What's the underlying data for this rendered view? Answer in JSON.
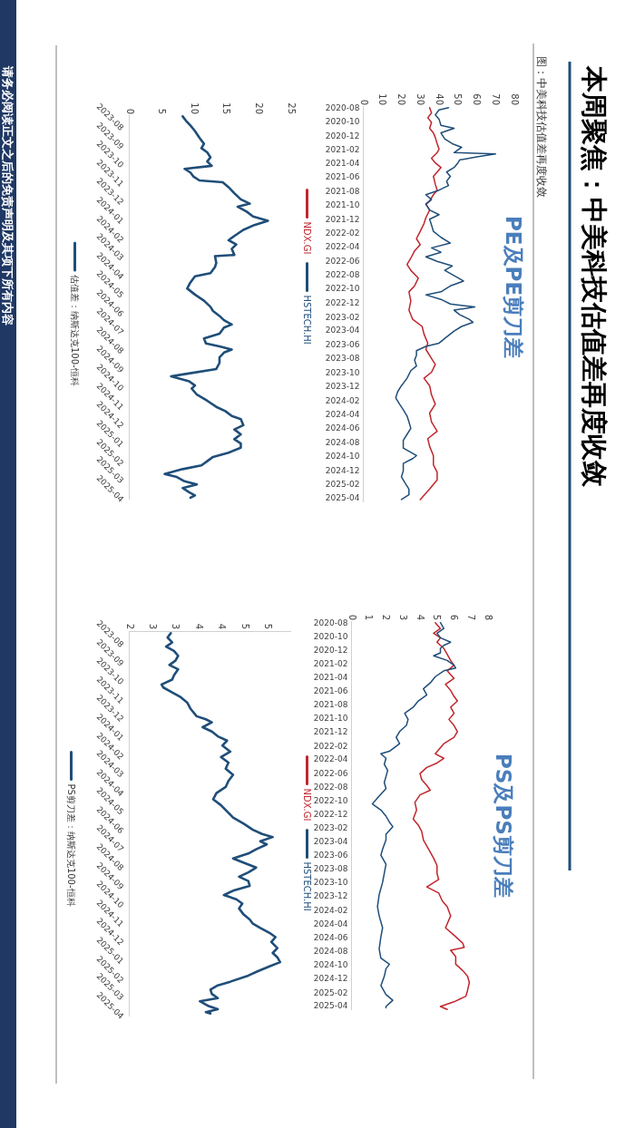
{
  "chart_data": [
    {
      "type": "line",
      "orientation": "horizontal",
      "title": "PE及PE剪刀差",
      "annotations": [
        "本周聚焦：中美科技估值差再度收敛",
        "图：中美科技估值差再度收敛"
      ],
      "ylim": [
        "2025-04-20",
        "2020-07-25"
      ],
      "yticks": [
        "2020-08",
        "2020-10",
        "2020-12",
        "2021-02",
        "2021-04",
        "2021-06",
        "2021-08",
        "2021-10",
        "2021-12",
        "2022-02",
        "2022-04",
        "2022-06",
        "2022-08",
        "2022-10",
        "2022-12",
        "2023-02",
        "2023-04",
        "2023-06",
        "2023-08",
        "2023-10",
        "2023-12",
        "2024-02",
        "2024-04",
        "2024-06",
        "2024-08",
        "2024-10",
        "2024-12",
        "2025-02",
        "2025-04"
      ],
      "xlim": [
        0,
        80
      ],
      "xticks": [
        0,
        10,
        20,
        30,
        40,
        50,
        60,
        70,
        80
      ],
      "legend": "left",
      "series": [
        {
          "name": "NDX.GI",
          "color": "#c0262d",
          "x": [
            "2020-08-01",
            "2020-08-24",
            "2020-09-14",
            "2020-10-04",
            "2020-10-30",
            "2020-11-19",
            "2020-12-09",
            "2021-01-05",
            "2021-01-29",
            "2021-02-13",
            "2021-03-10",
            "2021-03-30",
            "2021-04-19",
            "2021-05-09",
            "2021-05-28",
            "2021-07-01",
            "2021-07-27",
            "2021-08-16",
            "2021-09-12",
            "2021-09-26",
            "2021-10-22",
            "2021-11-24",
            "2021-12-20",
            "2022-01-23",
            "2022-02-24",
            "2022-03-22",
            "2022-04-18",
            "2022-05-20",
            "2022-06-16",
            "2022-07-12",
            "2022-08-15",
            "2022-09-18",
            "2022-10-14",
            "2022-11-23",
            "2023-01-02",
            "2023-02-11",
            "2023-03-14",
            "2023-04-16",
            "2023-05-26",
            "2023-06-22",
            "2023-08-01",
            "2023-08-27",
            "2023-09-30",
            "2023-10-26",
            "2023-11-28",
            "2024-01-07",
            "2024-02-16",
            "2024-03-26",
            "2024-05-04",
            "2024-06-14",
            "2024-07-16",
            "2024-08-19",
            "2024-09-28",
            "2024-11-07",
            "2024-12-10",
            "2025-01-12",
            "2025-02-21",
            "2025-04-08"
          ],
          "values": [
            35,
            36,
            34,
            36,
            35,
            37,
            38,
            39,
            40,
            39,
            36,
            38,
            41,
            39,
            37,
            38,
            39,
            37,
            35,
            33,
            35,
            33,
            32,
            30,
            28,
            30,
            27,
            25,
            23,
            25,
            29,
            27,
            24,
            25,
            24,
            26,
            31,
            32,
            34,
            33,
            36,
            38,
            36,
            32,
            35,
            36,
            38,
            35,
            36,
            39,
            34,
            35,
            37,
            37,
            39,
            39,
            35,
            30
          ]
        },
        {
          "name": "HSTECH.HI",
          "color": "#1f4e79",
          "x": [
            "2020-08-01",
            "2020-08-11",
            "2020-09-01",
            "2020-09-20",
            "2020-10-17",
            "2020-10-30",
            "2020-11-19",
            "2020-12-15",
            "2021-01-05",
            "2021-01-21",
            "2021-02-13",
            "2021-02-19",
            "2021-03-04",
            "2021-03-17",
            "2021-03-30",
            "2021-04-19",
            "2021-05-09",
            "2021-05-28",
            "2021-06-18",
            "2021-07-07",
            "2021-07-27",
            "2021-08-16",
            "2021-09-06",
            "2021-09-26",
            "2021-10-22",
            "2021-11-11",
            "2021-12-01",
            "2021-12-27",
            "2022-01-23",
            "2022-02-18",
            "2022-03-15",
            "2022-04-05",
            "2022-04-24",
            "2022-05-14",
            "2022-06-03",
            "2022-06-23",
            "2022-07-12",
            "2022-08-09",
            "2022-08-28",
            "2022-09-18",
            "2022-10-14",
            "2022-10-27",
            "2022-11-16",
            "2022-12-06",
            "2022-12-19",
            "2023-01-02",
            "2023-01-22",
            "2023-02-11",
            "2023-02-24",
            "2023-03-14",
            "2023-04-03",
            "2023-04-29",
            "2023-05-26",
            "2023-06-09",
            "2023-06-28",
            "2023-07-18",
            "2023-08-08",
            "2023-09-03",
            "2023-09-23",
            "2023-10-26",
            "2023-11-28",
            "2023-12-24",
            "2024-01-20",
            "2024-02-16",
            "2024-03-12",
            "2024-04-08",
            "2024-05-04",
            "2024-06-01",
            "2024-06-27",
            "2024-07-23",
            "2024-08-26",
            "2024-09-28",
            "2024-10-11",
            "2024-11-01",
            "2024-12-03",
            "2024-12-30",
            "2025-01-26",
            "2025-02-21",
            "2025-03-18",
            "2025-04-08"
          ],
          "values": [
            45,
            40,
            38,
            40,
            41,
            48,
            41,
            43,
            47,
            52,
            48,
            70,
            60,
            51,
            50,
            48,
            44,
            46,
            44,
            45,
            40,
            33,
            36,
            33,
            35,
            40,
            35,
            36,
            37,
            41,
            46,
            36,
            41,
            33,
            39,
            47,
            43,
            49,
            53,
            46,
            41,
            33,
            41,
            46,
            59,
            48,
            51,
            56,
            58,
            52,
            48,
            44,
            40,
            33,
            28,
            28,
            27,
            28,
            25,
            23,
            20,
            18,
            17,
            19,
            21,
            23,
            24,
            25,
            23,
            21,
            21,
            28,
            26,
            21,
            21,
            20,
            22,
            24,
            24,
            20
          ]
        }
      ]
    },
    {
      "type": "line",
      "orientation": "horizontal",
      "annotations": [
        "请务必阅读正文之后的免责声明及其项下所有内容"
      ],
      "ylim": [
        "2025-04-20",
        "2023-07-30"
      ],
      "yticks": [
        "2023-08",
        "2023-09",
        "2023-10",
        "2023-11",
        "2023-12",
        "2024-01",
        "2024-02",
        "2024-03",
        "2024-04",
        "2024-05",
        "2024-06",
        "2024-07",
        "2024-08",
        "2024-09",
        "2024-10",
        "2024-11",
        "2024-12",
        "2025-01",
        "2025-02",
        "2025-03",
        "2025-04"
      ],
      "xlim": [
        0,
        25
      ],
      "xticks": [
        0,
        5,
        10,
        15,
        20,
        25
      ],
      "legend": "left",
      "series": [
        {
          "name": "估值差：纳斯达克100-恒科",
          "color": "#1f4e79",
          "x": [
            "2023-08-01",
            "2023-08-08",
            "2023-08-16",
            "2023-08-25",
            "2023-09-05",
            "2023-09-15",
            "2023-09-22",
            "2023-09-29",
            "2023-10-07",
            "2023-10-14",
            "2023-10-21",
            "2023-10-26",
            "2023-11-01",
            "2023-11-08",
            "2023-11-14",
            "2023-11-17",
            "2023-11-25",
            "2023-12-05",
            "2023-12-15",
            "2023-12-22",
            "2023-12-27",
            "2024-01-04",
            "2024-01-12",
            "2024-01-19",
            "2024-01-26",
            "2024-02-03",
            "2024-02-13",
            "2024-02-20",
            "2024-02-27",
            "2024-03-05",
            "2024-03-15",
            "2024-03-17",
            "2024-03-28",
            "2024-04-04",
            "2024-04-14",
            "2024-04-19",
            "2024-04-29",
            "2024-05-09",
            "2024-05-19",
            "2024-05-29",
            "2024-06-08",
            "2024-06-15",
            "2024-06-23",
            "2024-06-30",
            "2024-07-07",
            "2024-07-12",
            "2024-07-22",
            "2024-07-30",
            "2024-08-07",
            "2024-08-12",
            "2024-08-17",
            "2024-08-22",
            "2024-08-30",
            "2024-09-08",
            "2024-09-18",
            "2024-09-26",
            "2024-09-30",
            "2024-10-08",
            "2024-10-15",
            "2024-10-20",
            "2024-10-30",
            "2024-11-09",
            "2024-11-19",
            "2024-11-26",
            "2024-12-04",
            "2024-12-09",
            "2024-12-19",
            "2024-12-26",
            "2025-01-03",
            "2025-01-11",
            "2025-01-18",
            "2025-01-25",
            "2025-02-02",
            "2025-02-09",
            "2025-02-16",
            "2025-02-23",
            "2025-03-01",
            "2025-03-09",
            "2025-03-14",
            "2025-03-21",
            "2025-03-26",
            "2025-04-01",
            "2025-04-08",
            "2025-04-13",
            "2025-04-17"
          ],
          "values": [
            8.2,
            8.7,
            9.4,
            10.1,
            10.8,
            11.5,
            11.1,
            12.0,
            12.5,
            12.0,
            12.7,
            8.5,
            9.4,
            9.9,
            10.8,
            14.4,
            15.3,
            16.2,
            17.2,
            18.6,
            16.7,
            18.1,
            19.1,
            21.4,
            19.3,
            17.6,
            16.2,
            15.3,
            16.5,
            15.8,
            16.2,
            13.2,
            13.4,
            13.2,
            12.5,
            10.1,
            9.4,
            8.9,
            10.1,
            11.5,
            12.5,
            12.9,
            13.9,
            14.6,
            15.8,
            14.6,
            13.9,
            11.5,
            11.8,
            13.9,
            15.8,
            14.6,
            13.9,
            13.9,
            13.4,
            8.7,
            6.4,
            9.2,
            10.1,
            9.6,
            10.4,
            12.0,
            13.4,
            14.8,
            15.8,
            17.2,
            17.6,
            16.2,
            17.2,
            16.2,
            17.2,
            17.2,
            15.3,
            12.9,
            12.0,
            11.1,
            8.2,
            5.4,
            7.3,
            8.5,
            10.4,
            8.2,
            9.2,
            10.1,
            9.4
          ]
        }
      ]
    },
    {
      "type": "line",
      "orientation": "horizontal",
      "title": "PS及PS剪刀差",
      "ylim": [
        "2025-04-20",
        "2020-07-25"
      ],
      "yticks": [
        "2020-08",
        "2020-10",
        "2020-12",
        "2021-02",
        "2021-04",
        "2021-06",
        "2021-08",
        "2021-10",
        "2021-12",
        "2022-02",
        "2022-04",
        "2022-06",
        "2022-08",
        "2022-10",
        "2022-12",
        "2023-02",
        "2023-04",
        "2023-06",
        "2023-08",
        "2023-10",
        "2023-12",
        "2024-02",
        "2024-04",
        "2024-06",
        "2024-08",
        "2024-10",
        "2024-12",
        "2025-02",
        "2025-04"
      ],
      "xlim": [
        0,
        8
      ],
      "xticks": [
        0,
        1,
        2,
        3,
        4,
        5,
        6,
        7,
        8
      ],
      "legend": "left",
      "series": [
        {
          "name": "NDX.GI",
          "color": "#c0262d",
          "x": [
            "2020-08-01",
            "2020-08-27",
            "2020-09-17",
            "2020-10-07",
            "2020-10-27",
            "2020-11-23",
            "2020-12-20",
            "2021-01-16",
            "2021-02-06",
            "2021-03-03",
            "2021-04-06",
            "2021-05-02",
            "2021-05-29",
            "2021-06-25",
            "2021-07-15",
            "2021-08-12",
            "2021-09-08",
            "2021-10-05",
            "2021-11-01",
            "2021-11-28",
            "2021-12-24",
            "2022-01-21",
            "2022-02-17",
            "2022-03-07",
            "2022-03-27",
            "2022-04-17",
            "2022-05-07",
            "2022-06-03",
            "2022-06-30",
            "2022-07-26",
            "2022-08-16",
            "2022-09-06",
            "2022-10-09",
            "2022-11-12",
            "2022-12-22",
            "2023-01-18",
            "2023-02-15",
            "2023-03-25",
            "2023-05-05",
            "2023-06-14",
            "2023-07-17",
            "2023-08-21",
            "2023-09-17",
            "2023-10-20",
            "2023-11-16",
            "2023-12-20",
            "2024-01-16",
            "2024-02-26",
            "2024-04-19",
            "2024-05-22",
            "2024-06-25",
            "2024-07-15",
            "2024-07-28",
            "2024-08-25",
            "2024-09-28",
            "2024-10-25",
            "2024-11-21",
            "2024-12-18",
            "2025-01-21",
            "2025-02-17",
            "2025-03-14",
            "2025-04-04",
            "2025-04-17"
          ],
          "values": [
            4.9,
            5.2,
            4.8,
            5.2,
            5.0,
            5.4,
            5.6,
            5.8,
            6.0,
            5.6,
            6.0,
            5.5,
            5.8,
            6.0,
            6.2,
            5.8,
            6.0,
            5.7,
            6.0,
            6.2,
            6.0,
            5.4,
            5.1,
            4.9,
            5.4,
            5.0,
            4.4,
            4.0,
            4.1,
            4.4,
            4.6,
            4.0,
            3.7,
            3.8,
            3.6,
            3.9,
            4.1,
            4.2,
            4.5,
            4.8,
            5.0,
            5.0,
            5.1,
            4.4,
            5.1,
            5.3,
            5.6,
            5.8,
            5.5,
            6.0,
            6.5,
            6.6,
            5.8,
            6.1,
            6.1,
            6.5,
            6.8,
            6.9,
            6.8,
            6.7,
            6.0,
            5.2,
            5.6
          ]
        },
        {
          "name": "HSTECH.HI",
          "color": "#1f4e79",
          "x": [
            "2020-08-01",
            "2020-08-27",
            "2020-09-17",
            "2020-10-07",
            "2020-10-27",
            "2020-11-10",
            "2020-11-23",
            "2020-12-13",
            "2020-12-26",
            "2021-01-16",
            "2021-02-06",
            "2021-02-19",
            "2021-03-03",
            "2021-03-29",
            "2021-04-26",
            "2021-05-22",
            "2021-06-18",
            "2021-07-15",
            "2021-08-12",
            "2021-09-08",
            "2021-10-05",
            "2021-11-01",
            "2021-11-28",
            "2021-12-24",
            "2022-01-21",
            "2022-02-24",
            "2022-03-07",
            "2022-03-27",
            "2022-04-23",
            "2022-05-20",
            "2022-06-16",
            "2022-07-13",
            "2022-08-09",
            "2022-09-19",
            "2022-10-16",
            "2022-11-12",
            "2022-12-09",
            "2023-01-05",
            "2023-01-25",
            "2023-02-28",
            "2023-03-25",
            "2023-05-05",
            "2023-06-01",
            "2023-07-11",
            "2023-08-21",
            "2023-09-30",
            "2023-11-23",
            "2024-01-16",
            "2024-02-26",
            "2024-04-19",
            "2024-05-29",
            "2024-07-22",
            "2024-09-01",
            "2024-09-28",
            "2024-10-18",
            "2024-11-21",
            "2025-01-01",
            "2025-02-10",
            "2025-03-07",
            "2025-04-04",
            "2025-04-10"
          ],
          "values": [
            5.2,
            5.4,
            5.0,
            5.2,
            5.8,
            5.4,
            5.2,
            5.2,
            4.8,
            5.6,
            6.0,
            6.1,
            5.4,
            4.9,
            4.6,
            4.2,
            4.4,
            3.9,
            3.6,
            3.1,
            3.3,
            3.2,
            2.8,
            2.6,
            2.8,
            2.2,
            1.7,
            2.0,
            1.9,
            2.1,
            2.0,
            1.9,
            2.0,
            1.5,
            1.2,
            1.7,
            2.0,
            2.2,
            2.4,
            2.0,
            2.0,
            1.8,
            1.7,
            2.0,
            1.9,
            1.8,
            1.6,
            1.5,
            1.6,
            1.8,
            1.7,
            1.6,
            1.7,
            2.2,
            2.0,
            1.9,
            1.7,
            2.0,
            2.4,
            2.0,
            2.0
          ]
        }
      ]
    },
    {
      "type": "line",
      "orientation": "horizontal",
      "ylim": [
        "2025-04-20",
        "2023-07-30"
      ],
      "yticks": [
        "2023-08",
        "2023-09",
        "2023-10",
        "2023-11",
        "2023-12",
        "2024-01",
        "2024-02",
        "2024-03",
        "2024-04",
        "2024-05",
        "2024-06",
        "2024-07",
        "2024-08",
        "2024-09",
        "2024-10",
        "2024-11",
        "2024-12",
        "2025-01",
        "2025-02",
        "2025-03",
        "2025-04"
      ],
      "xlim": [
        2,
        5.5
      ],
      "xticks": [
        2,
        {
          "value": 2.5,
          "label": "3"
        },
        3,
        {
          "value": 3.5,
          "label": "4"
        },
        4,
        {
          "value": 4.5,
          "label": "5"
        },
        5
      ],
      "legend": "left",
      "series": [
        {
          "name": "PS剪刀差：纳斯达克100-恒科",
          "color": "#1f4e79",
          "x": [
            "2023-08-01",
            "2023-08-08",
            "2023-08-16",
            "2023-08-23",
            "2023-08-30",
            "2023-09-07",
            "2023-09-15",
            "2023-09-22",
            "2023-09-29",
            "2023-10-09",
            "2023-10-16",
            "2023-10-24",
            "2023-10-29",
            "2023-11-06",
            "2023-11-13",
            "2023-11-23",
            "2023-12-03",
            "2023-12-15",
            "2023-12-20",
            "2023-12-25",
            "2024-01-02",
            "2024-01-09",
            "2024-01-17",
            "2024-01-24",
            "2024-02-01",
            "2024-02-11",
            "2024-02-20",
            "2024-02-29",
            "2024-03-10",
            "2024-03-20",
            "2024-03-30",
            "2024-04-09",
            "2024-04-19",
            "2024-04-29",
            "2024-05-09",
            "2024-05-19",
            "2024-05-29",
            "2024-06-08",
            "2024-06-18",
            "2024-06-25",
            "2024-06-30",
            "2024-07-07",
            "2024-07-12",
            "2024-07-20",
            "2024-07-27",
            "2024-08-04",
            "2024-08-12",
            "2024-08-19",
            "2024-08-27",
            "2024-09-03",
            "2024-09-10",
            "2024-09-18",
            "2024-09-26",
            "2024-10-03",
            "2024-10-10",
            "2024-10-17",
            "2024-10-25",
            "2024-11-04",
            "2024-11-12",
            "2024-11-19",
            "2024-11-26",
            "2024-12-04",
            "2024-12-11",
            "2024-12-19",
            "2024-12-29",
            "2025-01-06",
            "2025-01-13",
            "2025-01-21",
            "2025-01-28",
            "2025-02-05",
            "2025-02-12",
            "2025-02-22",
            "2025-02-28",
            "2025-03-07",
            "2025-03-14",
            "2025-03-21",
            "2025-03-26",
            "2025-04-03",
            "2025-04-08",
            "2025-04-13",
            "2025-04-15"
          ],
          "values": [
            2.89,
            2.82,
            2.92,
            2.79,
            2.96,
            3.05,
            2.99,
            2.86,
            3.05,
            2.96,
            2.92,
            2.69,
            2.73,
            2.92,
            3.09,
            3.25,
            3.32,
            3.45,
            3.65,
            3.78,
            3.58,
            3.78,
            3.91,
            4.11,
            4.01,
            4.18,
            3.98,
            4.14,
            4.08,
            4.24,
            4.14,
            4.08,
            3.88,
            3.81,
            3.98,
            4.11,
            4.24,
            4.47,
            4.67,
            4.87,
            5.1,
            4.83,
            4.97,
            4.74,
            4.57,
            4.24,
            4.5,
            4.74,
            4.57,
            4.37,
            4.57,
            4.6,
            4.24,
            4.04,
            4.31,
            4.44,
            4.37,
            4.47,
            4.6,
            4.67,
            4.83,
            5.03,
            5.16,
            5.07,
            5.2,
            5.1,
            5.2,
            5.26,
            5.03,
            4.77,
            4.57,
            4.18,
            3.91,
            3.75,
            3.78,
            3.91,
            3.52,
            3.71,
            3.91,
            3.65,
            3.75
          ]
        }
      ]
    }
  ]
}
